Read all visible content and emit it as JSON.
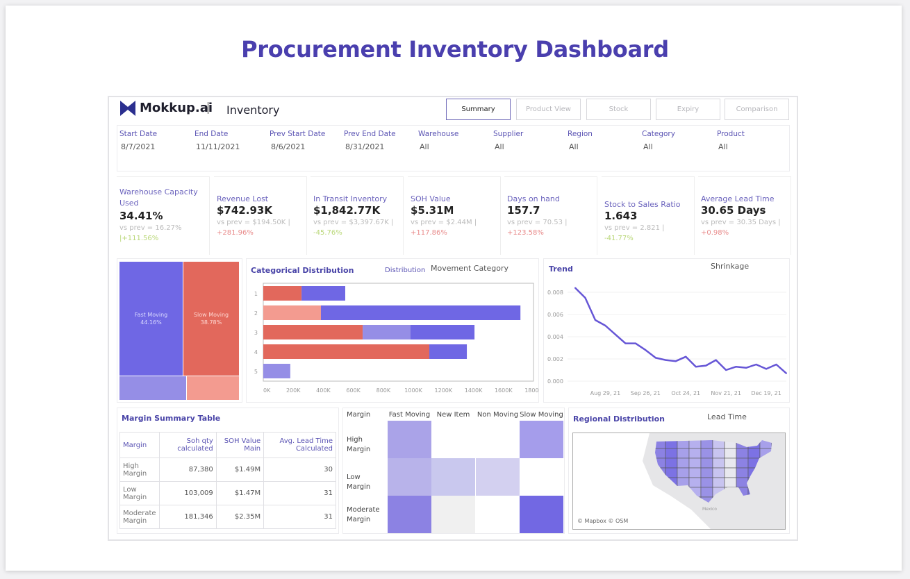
{
  "title": "Procurement Inventory Dashboard",
  "header": {
    "brand": "Mokkup.ai",
    "section": "Inventory",
    "tabs": [
      {
        "label": "Summary",
        "active": true
      },
      {
        "label": "Product View"
      },
      {
        "label": "Stock"
      },
      {
        "label": "Expiry"
      },
      {
        "label": "Comparison"
      }
    ]
  },
  "filters": [
    {
      "label": "Start Date",
      "value": "8/7/2021"
    },
    {
      "label": "End Date",
      "value": "11/11/2021"
    },
    {
      "label": "Prev Start Date",
      "value": "8/6/2021"
    },
    {
      "label": "Prev End Date",
      "value": "8/31/2021"
    },
    {
      "label": "Warehouse",
      "value": "All"
    },
    {
      "label": "Supplier",
      "value": "All"
    },
    {
      "label": "Region",
      "value": "All"
    },
    {
      "label": "Category",
      "value": "All"
    },
    {
      "label": "Product",
      "value": "All"
    }
  ],
  "kpis": [
    {
      "label": "Warehouse Capacity Used",
      "value": "34.41%",
      "prev": "vs prev = 16.27%",
      "change": "|+111.56%",
      "trend": "pos"
    },
    {
      "label": "Revenue Lost",
      "value": "$742.93K",
      "prev": "vs prev =  $194.50K |",
      "change": "+281.96%",
      "trend": "neg"
    },
    {
      "label": "In Transit Inventory",
      "value": "$1,842.77K",
      "prev": "vs prev =  $3,397.67K |",
      "change": "-45.76%",
      "trend": "pos"
    },
    {
      "label": "SOH Value",
      "value": "$5.31M",
      "prev": "vs prev = $2.44M |",
      "change": "+117.86%",
      "trend": "neg"
    },
    {
      "label": "Days on hand",
      "value": "157.7",
      "prev": "vs prev = 70.53 |",
      "change": "+123.58%",
      "trend": "neg"
    },
    {
      "label": "Stock to Sales Ratio",
      "value": "1.643",
      "prev": "vs prev = 2.821 |",
      "change": "-41.77%",
      "trend": "pos"
    },
    {
      "label": "Average Lead Time",
      "value": "30.65 Days",
      "prev": "vs prev = 30.35 Days |",
      "change": "+0.98%",
      "trend": "neg"
    }
  ],
  "colors": {
    "fast": "#6f67e4",
    "slow": "#e2685c",
    "fast_light": "#958ee6",
    "slow_light": "#f39b90",
    "accent": "#4a45a8"
  },
  "treemap": {
    "items": [
      {
        "label": "Fast Moving",
        "value": "44.16%"
      },
      {
        "label": "Slow Moving",
        "value": "38.78%"
      }
    ]
  },
  "chart_data": [
    {
      "type": "bar",
      "title": "Categorical Distribution",
      "legend_title": "Distribution",
      "subtitle": "Movement Category",
      "orientation": "horizontal",
      "stacked": true,
      "categories": [
        "1",
        "2",
        "3",
        "4",
        "5"
      ],
      "xticks": [
        "0K",
        "200K",
        "400K",
        "600K",
        "800K",
        "1000K",
        "1200K",
        "1400K",
        "1600K",
        "1800K"
      ],
      "xlim": [
        0,
        1800000
      ],
      "segments": [
        [
          {
            "value": 255000,
            "color": "#e2685c"
          },
          {
            "value": 291000,
            "color": "#6f67e4"
          }
        ],
        [
          {
            "value": 384000,
            "color": "#f39b90"
          },
          {
            "value": 1329000,
            "color": "#6f67e4"
          }
        ],
        [
          {
            "value": 662000,
            "color": "#e2685c"
          },
          {
            "value": 319000,
            "color": "#958ee6"
          },
          {
            "value": 426000,
            "color": "#6f67e4"
          }
        ],
        [
          {
            "value": 1106000,
            "color": "#e2685c"
          },
          {
            "value": 250000,
            "color": "#6f67e4"
          }
        ],
        [
          {
            "value": 180000,
            "color": "#958ee6"
          }
        ]
      ]
    },
    {
      "type": "line",
      "title": "Trend",
      "subtitle": "Shrinkage",
      "ylim": [
        0,
        0.0088
      ],
      "yticks": [
        "0.000",
        "0.002",
        "0.004",
        "0.006",
        "0.008"
      ],
      "xticks": [
        "Aug 29, 21",
        "Sep 26, 21",
        "Oct 24, 21",
        "Nov 21, 21",
        "Dec 19, 21"
      ],
      "x": [
        "2021-08-08",
        "2021-08-15",
        "2021-08-22",
        "2021-08-29",
        "2021-09-05",
        "2021-09-12",
        "2021-09-19",
        "2021-09-26",
        "2021-10-03",
        "2021-10-10",
        "2021-10-17",
        "2021-10-24",
        "2021-10-31",
        "2021-11-07",
        "2021-11-14",
        "2021-11-21",
        "2021-11-28",
        "2021-12-05",
        "2021-12-12",
        "2021-12-19",
        "2021-12-26",
        "2022-01-02"
      ],
      "y": [
        0.0084,
        0.0075,
        0.0055,
        0.005,
        0.0042,
        0.0034,
        0.0034,
        0.0028,
        0.0021,
        0.0019,
        0.0018,
        0.0022,
        0.0013,
        0.0014,
        0.0019,
        0.001,
        0.0013,
        0.0012,
        0.0015,
        0.0011,
        0.0015,
        0.0007
      ]
    },
    {
      "type": "heatmap",
      "columns": [
        "Fast Moving",
        "New Item",
        "Non Moving",
        "Slow Moving"
      ],
      "rows": [
        "High Margin",
        "Low Margin",
        "Moderate Margin"
      ],
      "corner": "Margin",
      "cells": [
        [
          "#aaa3e8",
          null,
          null,
          "#a59deb"
        ],
        [
          "#b8b3ea",
          "#c9c8ee",
          "#d3d0f0",
          null
        ],
        [
          "#8c82e3",
          "#f0f0f0",
          null,
          "#7268e3"
        ]
      ]
    }
  ],
  "margin_table": {
    "title": "Margin Summary Table",
    "headers": [
      "Margin",
      "Soh qty calculated",
      "SOH Value Main",
      "Avg.  Lead Time Calculated"
    ],
    "rows": [
      [
        "High Margin",
        "87,380",
        "$1.49M",
        "30"
      ],
      [
        "Low Margin",
        "103,009",
        "$1.47M",
        "31"
      ],
      [
        "Moderate Margin",
        "181,346",
        "$2.35M",
        "31"
      ]
    ]
  },
  "regional": {
    "title": "Regional Distribution",
    "subtitle": "Lead Time",
    "attribution": "© Mapbox © OSM",
    "map_label": "Mexico"
  }
}
